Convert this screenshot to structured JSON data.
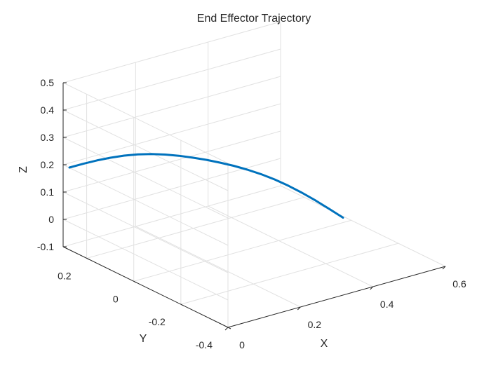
{
  "chart_data": {
    "type": "line",
    "title": "End Effector Trajectory",
    "xlabel": "X",
    "ylabel": "Y",
    "zlabel": "Z",
    "xlim": [
      0,
      0.6
    ],
    "ylim": [
      -0.4,
      0.3
    ],
    "zlim": [
      -0.1,
      0.5
    ],
    "x_ticks": [
      0,
      0.2,
      0.4,
      0.6
    ],
    "y_ticks": [
      -0.4,
      -0.2,
      0,
      0.2
    ],
    "z_ticks": [
      -0.1,
      0,
      0.1,
      0.2,
      0.3,
      0.4,
      0.5
    ],
    "x_tick_labels": [
      "0",
      "0.2",
      "0.4",
      "0.6"
    ],
    "y_tick_labels": [
      "-0.4",
      "-0.2",
      "0",
      "0.2"
    ],
    "z_tick_labels": [
      "-0.1",
      "0",
      "0.1",
      "0.2",
      "0.3",
      "0.4",
      "0.5"
    ],
    "grid": true,
    "line_color": "#0072BD",
    "series": [
      {
        "x": [
          0.35,
          0.335,
          0.32,
          0.305,
          0.29,
          0.275,
          0.26,
          0.245,
          0.23,
          0.215,
          0.2,
          0.185,
          0.17,
          0.155,
          0.14,
          0.125,
          0.11,
          0.095,
          0.08,
          0.065,
          0.05
        ],
        "y": [
          -0.35,
          -0.315,
          -0.28,
          -0.245,
          -0.21,
          -0.175,
          -0.14,
          -0.105,
          -0.07,
          -0.035,
          0,
          0.035,
          0.07,
          0.105,
          0.14,
          0.175,
          0.21,
          0.245,
          0.28,
          0.315,
          0.35
        ],
        "z": [
          0.15,
          0.1728,
          0.1944,
          0.2136,
          0.2304,
          0.244,
          0.2544,
          0.2616,
          0.2664,
          0.2688,
          0.27,
          0.2688,
          0.2664,
          0.2616,
          0.2544,
          0.244,
          0.2304,
          0.2136,
          0.1944,
          0.1728,
          0.15
        ]
      }
    ]
  }
}
